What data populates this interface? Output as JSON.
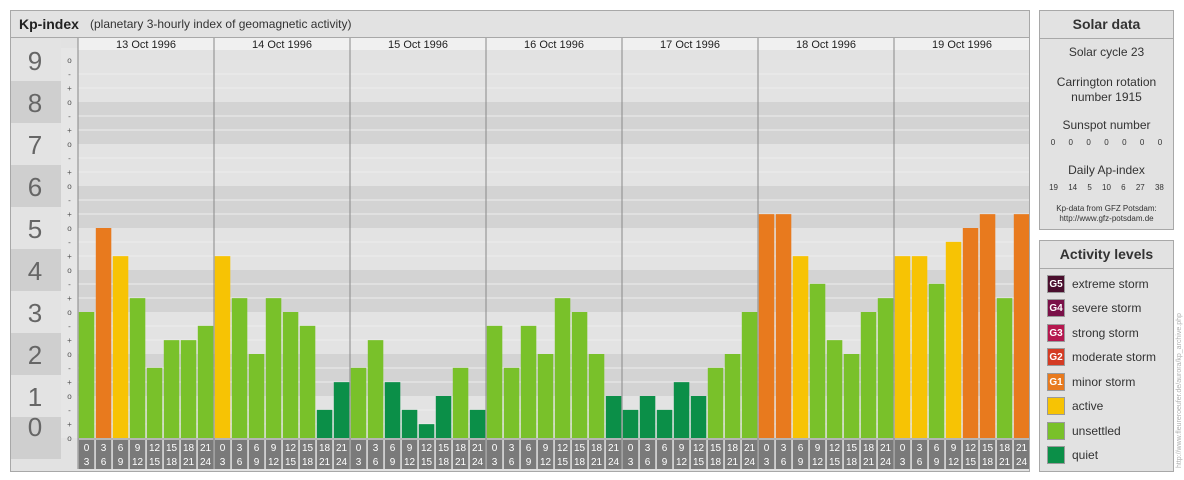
{
  "header": {
    "title": "Kp-index",
    "subtitle": "(planetary 3-hourly index of geomagnetic activity)"
  },
  "chart_data": {
    "type": "bar",
    "ylim": [
      0,
      9
    ],
    "y_tick_labels": [
      "0",
      "1",
      "2",
      "3",
      "4",
      "5",
      "6",
      "7",
      "8",
      "9"
    ],
    "y_subtick_labels": [
      "o",
      "+",
      "-"
    ],
    "days": [
      "13 Oct 1996",
      "14 Oct 1996",
      "15 Oct 1996",
      "16 Oct 1996",
      "17 Oct 1996",
      "18 Oct 1996",
      "19 Oct 1996"
    ],
    "interval_starts": [
      "0",
      "3",
      "6",
      "9",
      "12",
      "15",
      "18",
      "21"
    ],
    "interval_ends": [
      "3",
      "6",
      "9",
      "12",
      "15",
      "18",
      "21",
      "24"
    ],
    "values": [
      [
        3.0,
        5.0,
        4.33,
        3.33,
        1.67,
        2.33,
        2.33,
        2.67
      ],
      [
        4.33,
        3.33,
        2.0,
        3.33,
        3.0,
        2.67,
        0.67,
        1.33
      ],
      [
        1.67,
        2.33,
        1.33,
        0.67,
        0.33,
        1.0,
        1.67,
        0.67
      ],
      [
        2.67,
        1.67,
        2.67,
        2.0,
        3.33,
        3.0,
        2.0,
        1.0
      ],
      [
        0.67,
        1.0,
        0.67,
        1.33,
        1.0,
        1.67,
        2.0,
        3.0
      ],
      [
        5.33,
        5.33,
        4.33,
        3.67,
        2.33,
        2.0,
        3.0,
        3.33
      ],
      [
        4.33,
        4.33,
        3.67,
        4.67,
        5.0,
        5.33,
        3.33,
        5.33
      ]
    ]
  },
  "solar": {
    "title": "Solar data",
    "cycle": "Solar cycle 23",
    "carrington_line1": "Carrington rotation",
    "carrington_line2": "number 1915",
    "sunspot_title": "Sunspot number",
    "sunspot_values": [
      "0",
      "0",
      "0",
      "0",
      "0",
      "0",
      "0"
    ],
    "ap_title": "Daily Ap-index",
    "ap_values": [
      "19",
      "14",
      "5",
      "10",
      "6",
      "27",
      "38"
    ],
    "note_line1": "Kp-data from GFZ Potsdam:",
    "note_line2": "http://www.gfz-potsdam.de"
  },
  "levels": {
    "title": "Activity levels",
    "items": [
      {
        "code": "G5",
        "label": "extreme storm",
        "color": "#4a0f2e"
      },
      {
        "code": "G4",
        "label": "severe storm",
        "color": "#7a1048"
      },
      {
        "code": "G3",
        "label": "strong storm",
        "color": "#b5174f"
      },
      {
        "code": "G2",
        "label": "moderate storm",
        "color": "#d43b24"
      },
      {
        "code": "G1",
        "label": "minor storm",
        "color": "#e87a1e"
      },
      {
        "code": "",
        "label": "active",
        "color": "#f7c304"
      },
      {
        "code": "",
        "label": "unsettled",
        "color": "#79c12a"
      },
      {
        "code": "",
        "label": "quiet",
        "color": "#0b8f48"
      }
    ]
  },
  "watermark": "http://www.fleureroeufer.de/aurora/kp_archive.php"
}
